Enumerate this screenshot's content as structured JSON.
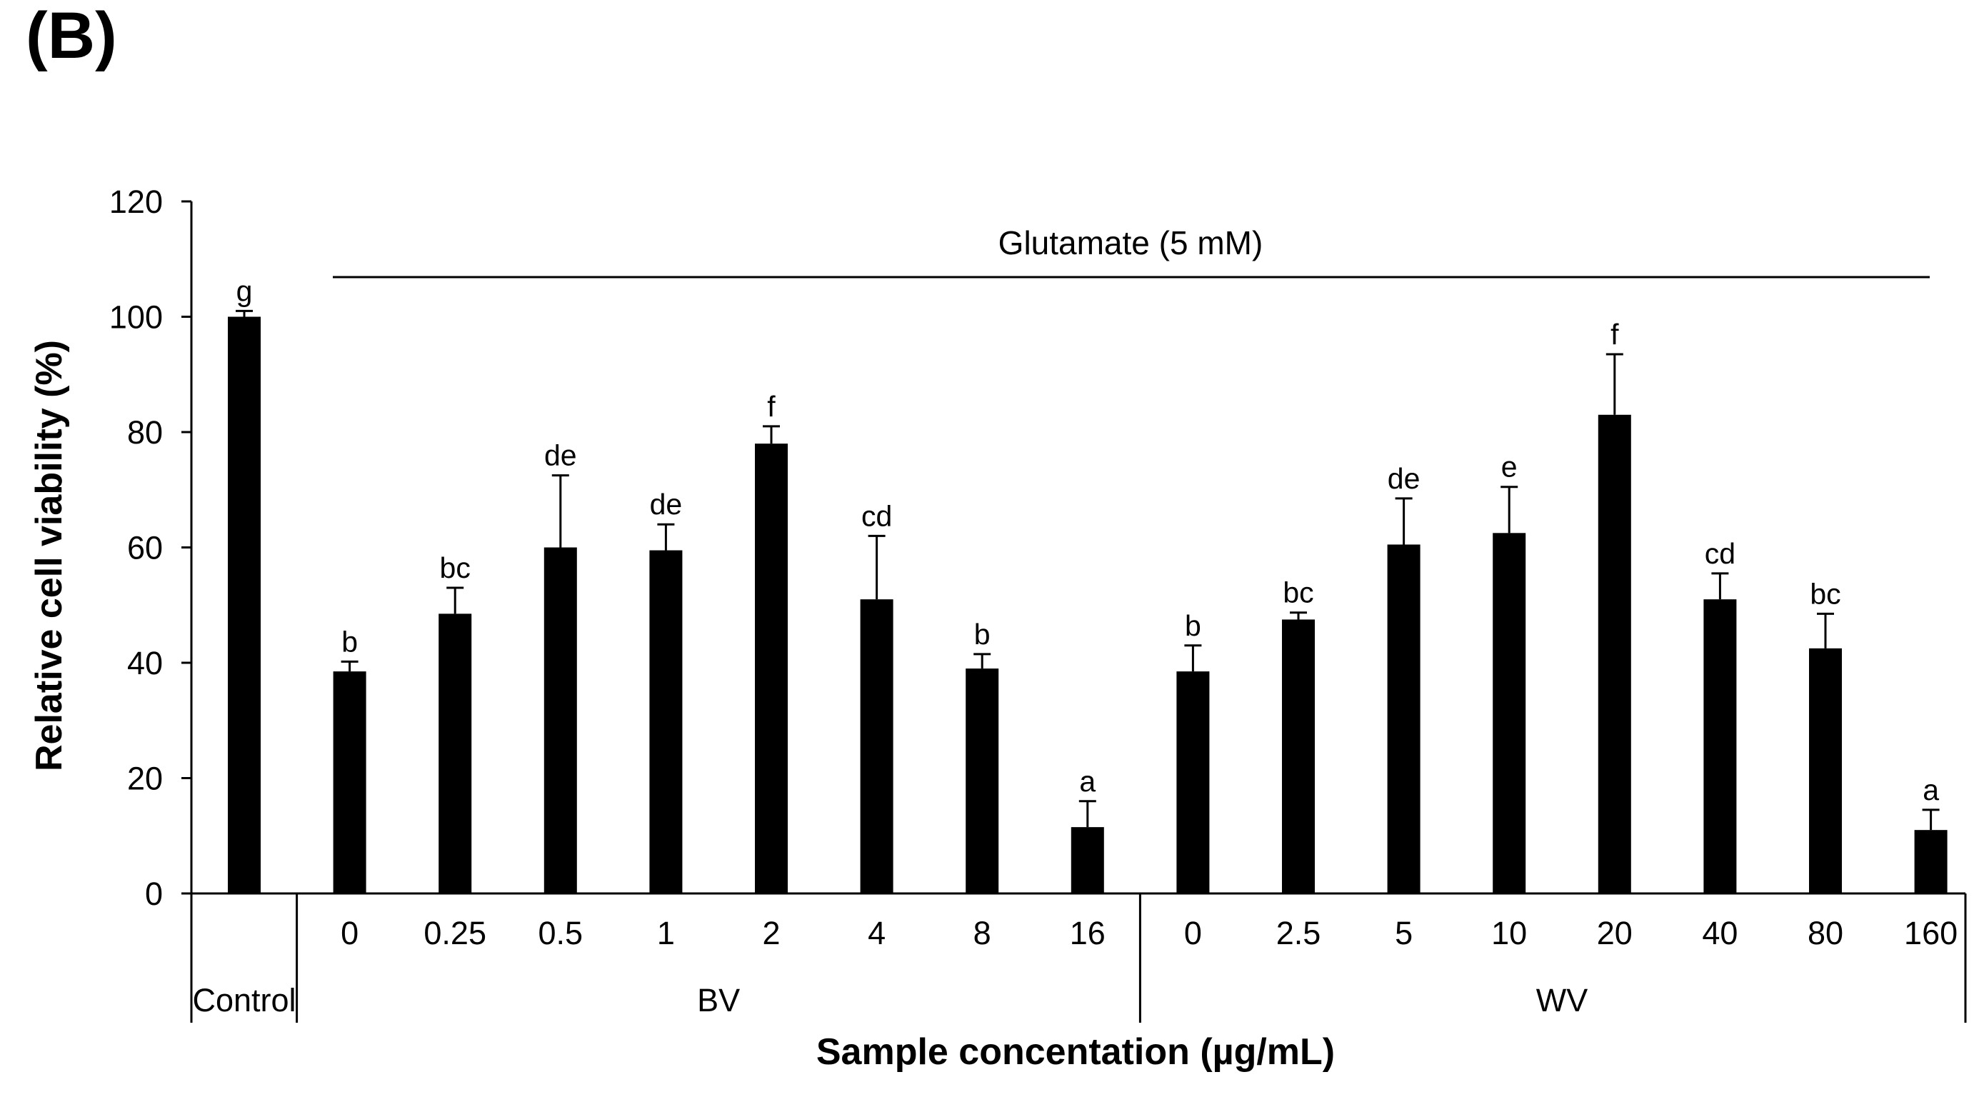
{
  "panel_label": "(B)",
  "chart_data": {
    "type": "bar",
    "title": "",
    "xlabel": "Sample concentation (µg/mL)",
    "ylabel": "Relative cell viability (%)",
    "ylim": [
      0,
      120
    ],
    "yticks": [
      "0",
      "20",
      "40",
      "60",
      "80",
      "100",
      "120"
    ],
    "grid": false,
    "annotation": "Glutamate (5 mM)",
    "groups": [
      {
        "label": "Control",
        "start": 0,
        "end": 0
      },
      {
        "label": "BV",
        "start": 1,
        "end": 8
      },
      {
        "label": "WV",
        "start": 9,
        "end": 16
      }
    ],
    "categories": [
      "",
      "0",
      "0.25",
      "0.5",
      "1",
      "2",
      "4",
      "8",
      "16",
      "0",
      "2.5",
      "5",
      "10",
      "20",
      "40",
      "80",
      "160"
    ],
    "values": [
      100,
      38.5,
      48.5,
      60,
      59.5,
      78,
      51,
      39,
      11.5,
      38.5,
      47.5,
      60.5,
      62.5,
      83,
      51,
      42.5,
      11
    ],
    "errors": [
      1,
      1.7,
      4.5,
      12.5,
      4.5,
      3,
      11,
      2.5,
      4.5,
      4.5,
      1.2,
      8,
      8,
      10.5,
      4.5,
      6,
      3.5
    ],
    "significance": [
      "g",
      "b",
      "bc",
      "de",
      "de",
      "f",
      "cd",
      "b",
      "a",
      "b",
      "bc",
      "de",
      "e",
      "f",
      "cd",
      "bc",
      "a"
    ]
  }
}
